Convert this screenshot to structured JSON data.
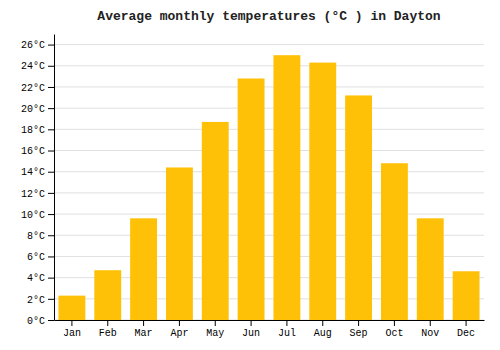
{
  "chart_data": {
    "type": "bar",
    "title": "Average monthly temperatures (°C ) in Dayton",
    "categories": [
      "Jan",
      "Feb",
      "Mar",
      "Apr",
      "May",
      "Jun",
      "Jul",
      "Aug",
      "Sep",
      "Oct",
      "Nov",
      "Dec"
    ],
    "values": [
      2.3,
      4.7,
      9.6,
      14.4,
      18.7,
      22.8,
      25.0,
      24.3,
      21.2,
      14.8,
      9.6,
      4.6
    ],
    "color": "#FFC107",
    "ylim": [
      0,
      27
    ],
    "yticks": [
      {
        "value": 0,
        "label": "0°C"
      },
      {
        "value": 2,
        "label": "2°C"
      },
      {
        "value": 4,
        "label": "4°C"
      },
      {
        "value": 6,
        "label": "6°C"
      },
      {
        "value": 8,
        "label": "8°C"
      },
      {
        "value": 10,
        "label": "10°C"
      },
      {
        "value": 12,
        "label": "12°C"
      },
      {
        "value": 14,
        "label": "14°C"
      },
      {
        "value": 16,
        "label": "16°C"
      },
      {
        "value": 18,
        "label": "18°C"
      },
      {
        "value": 20,
        "label": "20°C"
      },
      {
        "value": 22,
        "label": "22°C"
      },
      {
        "value": 24,
        "label": "24°C"
      },
      {
        "value": 26,
        "label": "26°C"
      }
    ],
    "grid": true
  }
}
